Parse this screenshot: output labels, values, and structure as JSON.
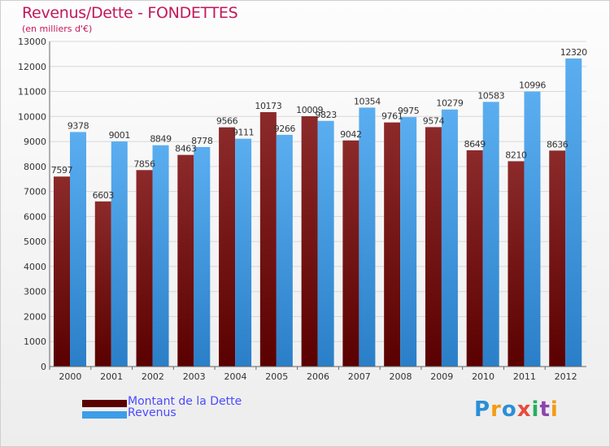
{
  "header": {
    "title": "Revenus/Dette - FONDETTES",
    "subtitle": "(en milliers d'€)"
  },
  "chart_data": {
    "type": "bar",
    "categories": [
      "2000",
      "2001",
      "2002",
      "2003",
      "2004",
      "2005",
      "2006",
      "2007",
      "2008",
      "2009",
      "2010",
      "2011",
      "2012"
    ],
    "series": [
      {
        "name": "Montant de la Dette",
        "color": "#7a1010",
        "values": [
          7597,
          6603,
          7856,
          8463,
          9566,
          10173,
          10009,
          9042,
          9761,
          9574,
          8649,
          8210,
          8636
        ]
      },
      {
        "name": "Revenus",
        "color": "#3d9de8",
        "values": [
          9378,
          9001,
          8849,
          8778,
          9111,
          9266,
          9823,
          10354,
          9975,
          10279,
          10583,
          10996,
          12320
        ]
      }
    ],
    "ylim": [
      0,
      13000
    ],
    "ytick_step": 1000,
    "grid": true,
    "legend_position": "bottom-left"
  },
  "logo": {
    "letters": [
      "P",
      "r",
      "o",
      "x",
      "i",
      "t",
      "i"
    ],
    "colors": [
      "#2a8fd6",
      "#f39c12",
      "#2a8fd6",
      "#e74c3c",
      "#27ae60",
      "#8e44ad",
      "#f39c12"
    ]
  }
}
